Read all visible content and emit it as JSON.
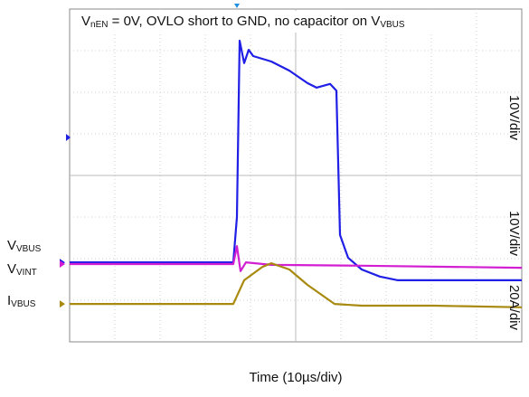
{
  "chart_data": {
    "type": "line",
    "title_parts": [
      "V",
      "nEN",
      " = 0V, OVLO short to GND, no capacitor on V",
      "VBUS"
    ],
    "xlabel": "Time (10µs/div)",
    "xlim": [
      0,
      10
    ],
    "ylim": [
      0,
      8
    ],
    "grid": true,
    "series": [
      {
        "name_parts": [
          "V",
          "VBUS"
        ],
        "scale": "10V/div",
        "color": "#1f1fe6",
        "x": [
          0,
          3.62,
          3.7,
          3.76,
          3.86,
          3.96,
          4.06,
          4.46,
          4.86,
          5.26,
          5.46,
          5.76,
          5.9,
          5.98,
          6.16,
          6.46,
          6.86,
          7.26,
          10
        ],
        "values": [
          1.91,
          1.91,
          3.0,
          7.24,
          6.7,
          7.02,
          6.87,
          6.74,
          6.52,
          6.22,
          6.11,
          6.2,
          6.04,
          2.57,
          2.02,
          1.74,
          1.57,
          1.48,
          1.48
        ]
      },
      {
        "name_parts": [
          "V",
          "VINT"
        ],
        "scale": "10V/div",
        "color": "#d21fd2",
        "x": [
          0,
          3.62,
          3.7,
          3.78,
          3.9,
          4.46,
          6.46,
          10
        ],
        "values": [
          1.87,
          1.87,
          2.3,
          1.7,
          1.91,
          1.85,
          1.83,
          1.78
        ]
      },
      {
        "name_parts": [
          "I",
          "VBUS"
        ],
        "scale": "20A/div",
        "color": "#a88a10",
        "x": [
          0,
          3.62,
          3.86,
          4.26,
          4.46,
          4.86,
          5.26,
          5.86,
          6.46,
          8.06,
          10
        ],
        "values": [
          0.91,
          0.91,
          1.48,
          1.8,
          1.89,
          1.74,
          1.37,
          0.91,
          0.87,
          0.87,
          0.83
        ]
      }
    ]
  }
}
